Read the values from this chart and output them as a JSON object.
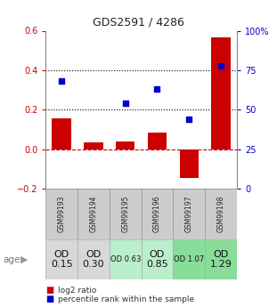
{
  "title": "GDS2591 / 4286",
  "samples": [
    "GSM99193",
    "GSM99194",
    "GSM99195",
    "GSM99196",
    "GSM99197",
    "GSM99198"
  ],
  "log2_ratio": [
    0.155,
    0.035,
    0.04,
    0.085,
    -0.145,
    0.565
  ],
  "pct_x": [
    0,
    2,
    3,
    4,
    5
  ],
  "pct_y": [
    68,
    54,
    63,
    44,
    78
  ],
  "age_labels": [
    "OD\n0.15",
    "OD\n0.30",
    "OD 0.63",
    "OD\n0.85",
    "OD 1.07",
    "OD\n1.29"
  ],
  "age_font_sizes": [
    8,
    8,
    6,
    8,
    6,
    8
  ],
  "age_cell_colors": [
    "#d8d8d8",
    "#d8d8d8",
    "#bbeecc",
    "#bbeecc",
    "#88dd99",
    "#88dd99"
  ],
  "bar_color": "#cc0000",
  "dot_color": "#0000cc",
  "ylim_left": [
    -0.2,
    0.6
  ],
  "ylim_right": [
    0,
    100
  ],
  "yticks_left": [
    -0.2,
    0.0,
    0.2,
    0.4,
    0.6
  ],
  "ytick_right_vals": [
    0,
    25,
    50,
    75,
    100
  ],
  "ytick_right_labels": [
    "0",
    "25",
    "50",
    "75",
    "100%"
  ],
  "dotted_line_vals": [
    0.2,
    0.4
  ],
  "background_color": "#ffffff",
  "bar_width": 0.6,
  "gsm_bg": "#cccccc",
  "gsm_font_size": 5.5
}
